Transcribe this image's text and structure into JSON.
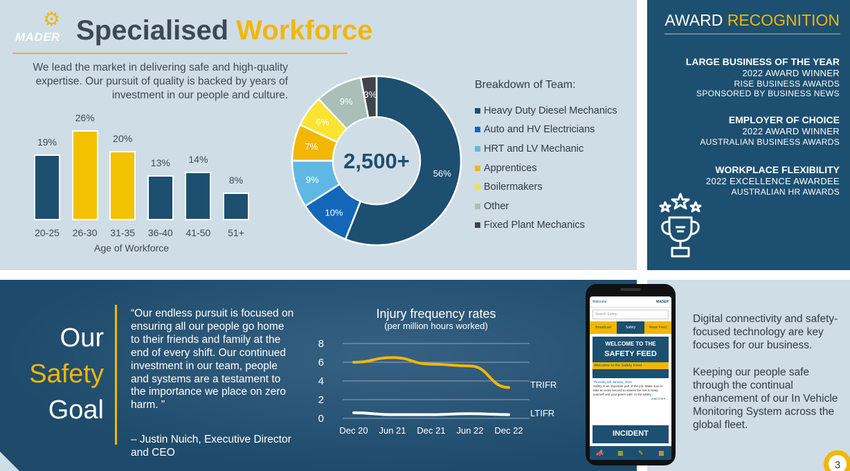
{
  "header": {
    "logo_text": "MADER",
    "title_main": "Specialised",
    "title_accent": "Workforce"
  },
  "intro": "We lead the market in delivering safe and high-quality expertise. Our pursuit of quality is backed by years of investment in our people and culture.",
  "chart_data": [
    {
      "type": "bar",
      "categories": [
        "20-25",
        "26-30",
        "31-35",
        "36-40",
        "41-50",
        "51+"
      ],
      "values": [
        19,
        26,
        20,
        13,
        14,
        8
      ],
      "value_labels": [
        "19%",
        "26%",
        "20%",
        "13%",
        "14%",
        "8%"
      ],
      "colors": [
        "#1d4f70",
        "#f2c200",
        "#f2c200",
        "#1d4f70",
        "#1d4f70",
        "#1d4f70"
      ],
      "xlabel": "Age of Workforce",
      "ylim": [
        0,
        30
      ]
    },
    {
      "type": "pie",
      "center_label": "2,500+",
      "legend_title": "Breakdown of Team:",
      "categories": [
        "Heavy Duty Diesel Mechanics",
        "Auto and HV Electricians",
        "HRT and LV Mechanic",
        "Apprentices",
        "Boilermakers",
        "Other",
        "Fixed Plant Mechanics"
      ],
      "values": [
        56,
        10,
        9,
        7,
        6,
        9,
        3
      ],
      "value_labels": [
        "56%",
        "10%",
        "9%",
        "7%",
        "6%",
        "9%",
        "3%"
      ],
      "colors": [
        "#1d4f70",
        "#1467b8",
        "#5fb8e4",
        "#f2b705",
        "#f9e431",
        "#a9bfb7",
        "#3f4448"
      ],
      "label_colors": [
        "#ffffff",
        "#ffffff",
        "#ffffff",
        "#ffffff",
        "#ffffff",
        "#ffffff",
        "#ffffff"
      ]
    },
    {
      "type": "line",
      "title": "Injury frequency rates",
      "subtitle": "(per million hours worked)",
      "x": [
        "Dec 20",
        "Jun 21",
        "Dec 21",
        "Jun 22",
        "Dec 22"
      ],
      "yticks": [
        "0",
        "2",
        "4",
        "6",
        "8"
      ],
      "ylim": [
        0,
        8
      ],
      "series": [
        {
          "name": "TRIFR",
          "color": "#f2b705",
          "values": [
            6.0,
            6.5,
            5.8,
            5.6,
            3.3
          ]
        },
        {
          "name": "LTIFR",
          "color": "#ffffff",
          "values": [
            0.6,
            0.4,
            0.4,
            0.5,
            0.4
          ]
        }
      ]
    }
  ],
  "awards": {
    "heading_main": "AWARD",
    "heading_accent": "RECOGNITION",
    "items": [
      {
        "title": "LARGE BUSINESS OF THE YEAR",
        "status": "2022 AWARD WINNER",
        "line1": "RISE BUSINESS AWARDS",
        "line2": "SPONSORED BY BUSINESS NEWS"
      },
      {
        "title": "EMPLOYER OF CHOICE",
        "status": "2022 AWARD WINNER",
        "line1": "AUSTRALIAN BUSINESS AWARDS"
      },
      {
        "title": "WORKPLACE FLEXIBILITY",
        "status": "2022 EXCELLENCE AWARDEE",
        "line1": "AUSTRALIAN HR AWARDS"
      }
    ]
  },
  "safety": {
    "word1": "Our",
    "word2": "Safety",
    "word3": "Goal",
    "quote": "“Our endless pursuit is focused on ensuring all our people go home to their friends and family at the end of every shift. Our continued investment in our team, people and systems are a testament to the importance we place on zero harm. ”",
    "attribution": "– Justin Nuich, Executive Director and CEO"
  },
  "phone": {
    "welcome": "Welcome",
    "brand": "MADER",
    "search": "Search Safety",
    "tabs": [
      "Broadcast",
      "Safety",
      "News Feed"
    ],
    "banner_top": "WELCOME TO THE",
    "banner_main": "SAFETY FEED",
    "banner_sub": "Welcome to the Safety Feed",
    "post_date": "Thursday 6th January, 2022",
    "post_text": "Safety is an important part of the job. Make sure to take an extra second to assess the risk to keep yourself and your peers safe. In the safety...",
    "read_more": "read more...",
    "incident": "INCIDENT"
  },
  "digital": {
    "para1": "Digital connectivity and safety-focused technology are key focuses for our business.",
    "para2": "Keeping our people safe through the continual enhancement of our In Vehicle Monitoring System across the global fleet."
  },
  "page_number": "3"
}
